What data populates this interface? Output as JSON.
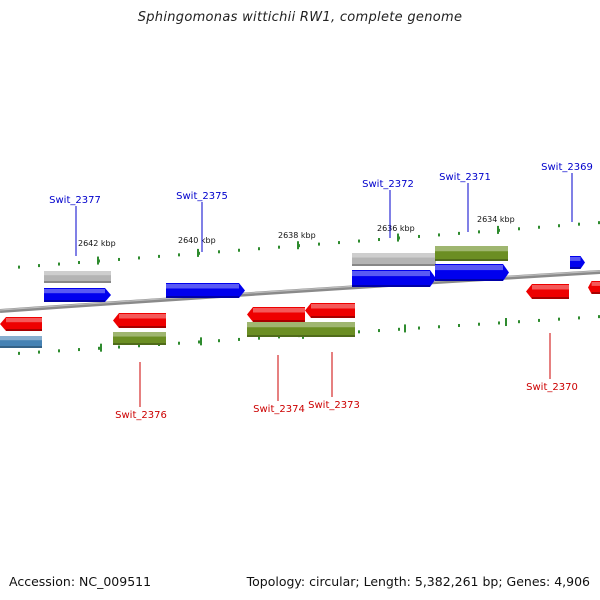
{
  "title": "Sphingomonas wittichii RW1, complete genome",
  "footer": {
    "accession": "Accession: NC_009511",
    "summary": "Topology: circular; Length: 5,382,261 bp; Genes: 4,906"
  },
  "colors": {
    "forward_gene": "#0000ee",
    "reverse_gene": "#ee0000",
    "label_forward": "#0000cc",
    "label_reverse": "#cc0000",
    "feature_green": "#6b8e23",
    "feature_gray": "#b4b4b4",
    "feature_steel": "#4682b4",
    "backbone": "#8a8a8a",
    "tick": "#2e8b2e"
  },
  "scale_ticks": [
    {
      "label": "2642 kbp"
    },
    {
      "label": "2640 kbp"
    },
    {
      "label": "2638 kbp"
    },
    {
      "label": "2636 kbp"
    },
    {
      "label": "2634 kbp"
    }
  ],
  "genes": [
    {
      "name": "Swit_2377",
      "strand": "forward"
    },
    {
      "name": "Swit_2375",
      "strand": "forward"
    },
    {
      "name": "Swit_2372",
      "strand": "forward"
    },
    {
      "name": "Swit_2371",
      "strand": "forward"
    },
    {
      "name": "Swit_2369",
      "strand": "forward"
    },
    {
      "name": "Swit_2376",
      "strand": "reverse"
    },
    {
      "name": "Swit_2374",
      "strand": "reverse"
    },
    {
      "name": "Swit_2373",
      "strand": "reverse"
    },
    {
      "name": "Swit_2370",
      "strand": "reverse"
    }
  ],
  "features": [
    {
      "type": "gray"
    },
    {
      "type": "green"
    },
    {
      "type": "steel"
    }
  ]
}
